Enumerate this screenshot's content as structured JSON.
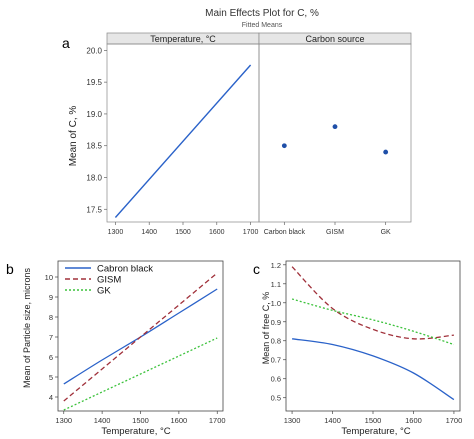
{
  "figure": {
    "title": "Main Effects Plot for C, %",
    "subtitle": "Fitted Means"
  },
  "chart_data": [
    {
      "panel_label": "a",
      "type": "line",
      "panel_title": "Temperature, °C",
      "ylabel": "Mean of C, %",
      "xlabel": "",
      "x": [
        1300,
        1700
      ],
      "ylim": [
        17.3,
        20.1
      ],
      "xlim": [
        1275,
        1725
      ],
      "xticks": [
        1300,
        1400,
        1500,
        1600,
        1700
      ],
      "yticks": [
        17.5,
        18.0,
        18.5,
        19.0,
        19.5,
        20.0
      ],
      "ytick_labels": [
        "17.5",
        "18.0",
        "18.5",
        "19.0",
        "19.5",
        "20.0"
      ],
      "series": [
        {
          "values": [
            17.37,
            19.77
          ],
          "color": "#2a62c9"
        }
      ],
      "grid": false
    },
    {
      "panel_label": "",
      "type": "scatter",
      "panel_title": "Carbon source",
      "ylim": [
        17.3,
        20.1
      ],
      "categories": [
        "Carbon black",
        "GISM",
        "GK"
      ],
      "values": [
        18.5,
        18.8,
        18.4
      ],
      "color": "#1f4fa8",
      "grid": false
    },
    {
      "panel_label": "b",
      "type": "line",
      "xlabel": "Temperature, °C",
      "ylabel": "Mean of Particle size, microns",
      "xlim": [
        1285,
        1715
      ],
      "ylim": [
        3.3,
        10.8
      ],
      "xticks": [
        1300,
        1400,
        1500,
        1600,
        1700
      ],
      "yticks": [
        3,
        4,
        5,
        6,
        7,
        8,
        9,
        10
      ],
      "legend_position": "top-left",
      "x": [
        1300,
        1400,
        1500,
        1600,
        1700
      ],
      "series": [
        {
          "name": "Cabron black",
          "values": [
            4.65,
            5.85,
            7.0,
            8.2,
            9.4
          ],
          "color": "#2a62c9",
          "dash": "solid"
        },
        {
          "name": "GISM",
          "values": [
            3.8,
            5.4,
            7.0,
            8.6,
            10.2
          ],
          "color": "#a0303a",
          "dash": "dashed"
        },
        {
          "name": "GK",
          "values": [
            3.35,
            4.25,
            5.15,
            6.05,
            6.95
          ],
          "color": "#3cc23c",
          "dash": "dotted"
        }
      ],
      "grid": false
    },
    {
      "panel_label": "c",
      "type": "line",
      "xlabel": "Temperature, °C",
      "ylabel": "Mean of free C, %",
      "xlim": [
        1285,
        1715
      ],
      "ylim": [
        0.43,
        1.22
      ],
      "xticks": [
        1300,
        1400,
        1500,
        1600,
        1700
      ],
      "yticks": [
        0.5,
        0.6,
        0.7,
        0.8,
        0.9,
        1.0,
        1.1,
        1.2
      ],
      "ytick_labels": [
        "0.5",
        "0.6",
        "0.7",
        "0.8",
        "0.9",
        "1.0",
        "1.1",
        "1.2"
      ],
      "x": [
        1300,
        1400,
        1500,
        1600,
        1700
      ],
      "series": [
        {
          "values": [
            0.81,
            0.78,
            0.72,
            0.63,
            0.49
          ],
          "color": "#2a62c9",
          "dash": "solid"
        },
        {
          "values": [
            1.19,
            0.97,
            0.86,
            0.81,
            0.83
          ],
          "color": "#a0303a",
          "dash": "dashed"
        },
        {
          "values": [
            1.02,
            0.96,
            0.91,
            0.85,
            0.78
          ],
          "color": "#3cc23c",
          "dash": "dotted"
        }
      ],
      "grid": false
    }
  ]
}
